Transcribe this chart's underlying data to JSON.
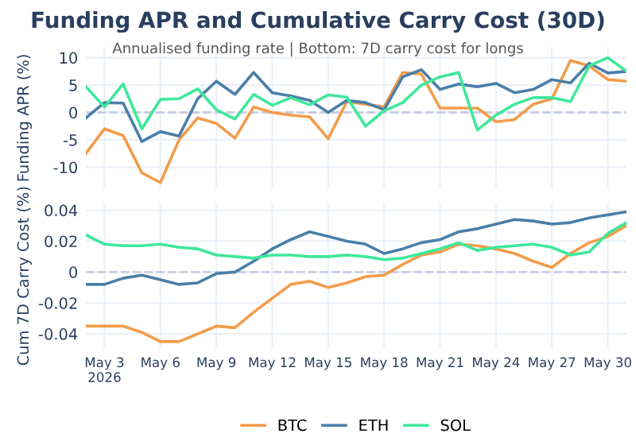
{
  "chart_data": [
    {
      "type": "line",
      "title": "Funding APR and Cumulative Carry Cost (30D)",
      "subtitle": "Annualised funding rate | Bottom: 7D carry cost for longs",
      "ylabel": "Funding APR (%)",
      "x": [
        "2026-05-02",
        "2026-05-03",
        "2026-05-04",
        "2026-05-05",
        "2026-05-06",
        "2026-05-07",
        "2026-05-08",
        "2026-05-09",
        "2026-05-10",
        "2026-05-11",
        "2026-05-12",
        "2026-05-13",
        "2026-05-14",
        "2026-05-15",
        "2026-05-16",
        "2026-05-17",
        "2026-05-18",
        "2026-05-19",
        "2026-05-20",
        "2026-05-21",
        "2026-05-22",
        "2026-05-23",
        "2026-05-24",
        "2026-05-25",
        "2026-05-26",
        "2026-05-27",
        "2026-05-28",
        "2026-05-29",
        "2026-05-30",
        "2026-05-31"
      ],
      "series": [
        {
          "color": "#f39c4a",
          "values": [
            -7.5,
            -3,
            -4.2,
            -11,
            -12.8,
            -5,
            -1,
            -2,
            -4.7,
            1,
            0,
            -0.5,
            -0.8,
            -4.8,
            2,
            1.5,
            1,
            7.3,
            7,
            0.8,
            0.8,
            0.8,
            -1.7,
            -1.3,
            1.5,
            2.5,
            9.5,
            8.5,
            6,
            5.7
          ]
        },
        {
          "color": "#4a7fa8",
          "values": [
            -1,
            1.8,
            1.7,
            -5.3,
            -3.5,
            -4.3,
            2.5,
            5.7,
            3.3,
            7.3,
            3.6,
            3,
            2.2,
            0,
            2.2,
            1.8,
            0.5,
            6.5,
            7.8,
            4.2,
            5.2,
            4.7,
            5.3,
            3.6,
            4.2,
            6,
            5.4,
            9,
            7.2,
            7.5
          ]
        },
        {
          "color": "#3ee89a",
          "values": [
            4.7,
            1,
            5.2,
            -3,
            2.4,
            2.5,
            4.3,
            0.5,
            -1.2,
            3.3,
            1.3,
            2.7,
            1.4,
            3.2,
            2.8,
            -2.5,
            0.3,
            1.8,
            5,
            6.5,
            7.3,
            -3.2,
            -0.5,
            1.5,
            2.7,
            2.7,
            2,
            8.5,
            10,
            7.5
          ]
        }
      ],
      "xlim": [
        "2026-05-02",
        "2026-05-31"
      ],
      "ylim": [
        -14,
        12
      ],
      "yticks": [
        -10,
        -5,
        0,
        5,
        10
      ],
      "ref_lines": [
        {
          "axis": "y",
          "value": 0,
          "line_style": "dashed",
          "color": "#c8cde0"
        }
      ],
      "grid": true,
      "tick_labels": "y",
      "line_style": "solid",
      "marker": "none"
    },
    {
      "type": "line",
      "ylabel": "Cum 7D Carry Cost (%)",
      "x": [
        "2026-05-02",
        "2026-05-03",
        "2026-05-04",
        "2026-05-05",
        "2026-05-06",
        "2026-05-07",
        "2026-05-08",
        "2026-05-09",
        "2026-05-10",
        "2026-05-11",
        "2026-05-12",
        "2026-05-13",
        "2026-05-14",
        "2026-05-15",
        "2026-05-16",
        "2026-05-17",
        "2026-05-18",
        "2026-05-19",
        "2026-05-20",
        "2026-05-21",
        "2026-05-22",
        "2026-05-23",
        "2026-05-24",
        "2026-05-25",
        "2026-05-26",
        "2026-05-27",
        "2026-05-28",
        "2026-05-29",
        "2026-05-30",
        "2026-05-31"
      ],
      "series": [
        {
          "name": "BTC",
          "color": "#f39c4a",
          "values": [
            -0.035,
            -0.035,
            -0.035,
            -0.039,
            -0.045,
            -0.045,
            -0.04,
            -0.035,
            -0.036,
            -0.026,
            -0.017,
            -0.008,
            -0.006,
            -0.01,
            -0.007,
            -0.003,
            -0.002,
            0.005,
            0.011,
            0.013,
            0.018,
            0.017,
            0.015,
            0.012,
            0.007,
            0.003,
            0.012,
            0.019,
            0.023,
            0.03
          ]
        },
        {
          "name": "ETH",
          "color": "#4a7fa8",
          "values": [
            -0.008,
            -0.008,
            -0.004,
            -0.002,
            -0.005,
            -0.008,
            -0.007,
            -0.001,
            0.0,
            0.007,
            0.015,
            0.021,
            0.026,
            0.023,
            0.02,
            0.018,
            0.012,
            0.015,
            0.019,
            0.021,
            0.026,
            0.028,
            0.031,
            0.034,
            0.033,
            0.031,
            0.032,
            0.035,
            0.037,
            0.039
          ]
        },
        {
          "name": "SOL",
          "color": "#3ee89a",
          "values": [
            0.024,
            0.018,
            0.017,
            0.017,
            0.018,
            0.016,
            0.015,
            0.011,
            0.01,
            0.009,
            0.011,
            0.011,
            0.01,
            0.01,
            0.011,
            0.01,
            0.008,
            0.009,
            0.012,
            0.015,
            0.019,
            0.014,
            0.016,
            0.017,
            0.018,
            0.016,
            0.011,
            0.013,
            0.025,
            0.032
          ]
        }
      ],
      "xlim": [
        "2026-05-02",
        "2026-05-31"
      ],
      "ylim": [
        -0.05,
        0.045
      ],
      "yticks": [
        -0.04,
        -0.02,
        0,
        0.02,
        0.04
      ],
      "xticks": [
        {
          "value": "2026-05-03",
          "label": "May 3\n2026"
        },
        {
          "value": "2026-05-06",
          "label": "May 6"
        },
        {
          "value": "2026-05-09",
          "label": "May 9"
        },
        {
          "value": "2026-05-12",
          "label": "May 12"
        },
        {
          "value": "2026-05-15",
          "label": "May 15"
        },
        {
          "value": "2026-05-18",
          "label": "May 18"
        },
        {
          "value": "2026-05-21",
          "label": "May 21"
        },
        {
          "value": "2026-05-24",
          "label": "May 24"
        },
        {
          "value": "2026-05-27",
          "label": "May 27"
        },
        {
          "value": "2026-05-30",
          "label": "May 30"
        }
      ],
      "ref_lines": [
        {
          "axis": "y",
          "value": 0,
          "line_style": "dashed",
          "color": "#c8cde0"
        }
      ],
      "grid": true,
      "legend": "bottom",
      "line_style": "solid",
      "marker": "none"
    }
  ]
}
